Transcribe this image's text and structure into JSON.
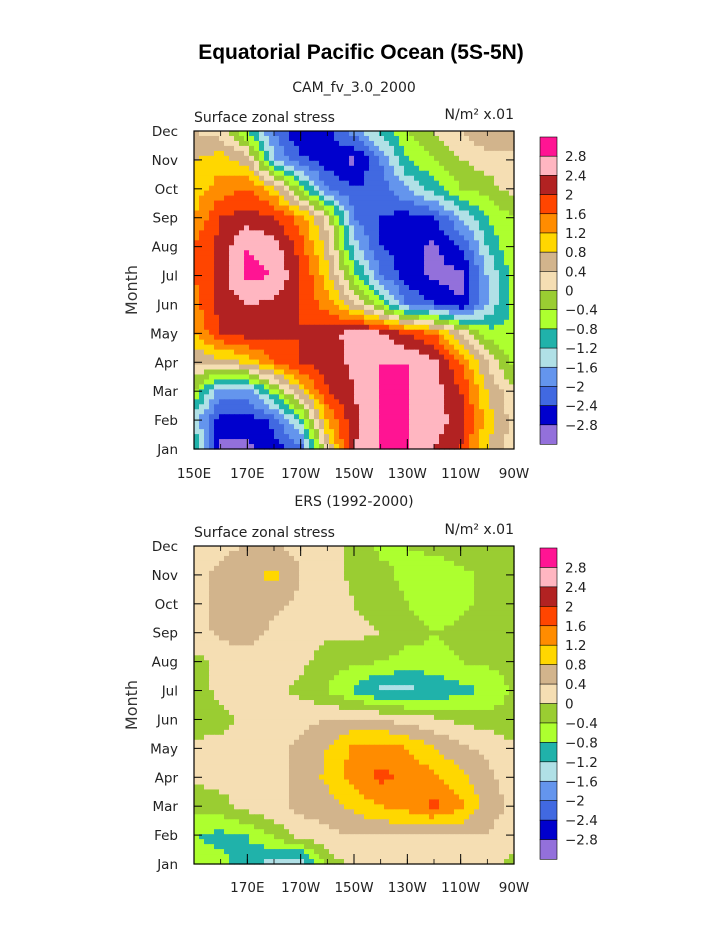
{
  "title": "Equatorial Pacific Ocean (5S-5N)",
  "chart_data": [
    {
      "type": "heatmap",
      "subtitle": "CAM_fv_3.0_2000",
      "left_label": "Surface zonal stress",
      "right_label": "N/m² x.01",
      "ylabel": "Month",
      "xticks": [
        "150E",
        "170E",
        "170W",
        "150W",
        "130W",
        "110W",
        "90W"
      ],
      "x": [
        150,
        160,
        170,
        180,
        190,
        200,
        210,
        220,
        230,
        240,
        250,
        260,
        270
      ],
      "months": [
        "Jan",
        "Feb",
        "Mar",
        "Apr",
        "May",
        "Jun",
        "Jul",
        "Aug",
        "Sep",
        "Oct",
        "Nov",
        "Dec"
      ],
      "values": [
        [
          -0.6,
          -2.9,
          -2.9,
          -2.6,
          -2.2,
          0.4,
          2.4,
          2.8,
          2.8,
          2.4,
          2.0,
          0.8,
          0.2
        ],
        [
          -1.4,
          -2.6,
          -2.6,
          -2.3,
          -1.0,
          1.2,
          2.3,
          2.8,
          2.8,
          2.6,
          2.2,
          1.0,
          0.2
        ],
        [
          -0.4,
          -1.8,
          -1.8,
          -0.6,
          0.8,
          2.0,
          2.4,
          2.8,
          2.8,
          2.6,
          2.0,
          0.8,
          0.1
        ],
        [
          0.4,
          0.6,
          0.9,
          1.6,
          2.0,
          2.2,
          2.5,
          2.8,
          2.8,
          2.5,
          1.6,
          0.4,
          -0.6
        ],
        [
          1.2,
          2.0,
          2.2,
          2.1,
          2.0,
          2.2,
          2.6,
          2.5,
          2.0,
          1.6,
          0.4,
          -0.6,
          -0.8
        ],
        [
          1.4,
          2.2,
          2.4,
          2.3,
          2.0,
          1.4,
          0.5,
          -0.6,
          -2.0,
          -2.4,
          -2.8,
          -1.6,
          -0.6
        ],
        [
          1.6,
          2.2,
          2.9,
          2.8,
          2.0,
          1.0,
          -0.6,
          -2.0,
          -2.6,
          -2.9,
          -2.9,
          -1.6,
          -0.6
        ],
        [
          1.6,
          2.2,
          2.8,
          2.6,
          1.8,
          0.6,
          -1.4,
          -2.4,
          -2.6,
          -2.9,
          -2.4,
          -1.2,
          -0.4
        ],
        [
          1.2,
          2.0,
          2.2,
          2.0,
          1.4,
          0.2,
          -2.0,
          -2.4,
          -2.6,
          -2.4,
          -1.6,
          -0.8,
          -0.4
        ],
        [
          1.0,
          1.4,
          1.6,
          1.0,
          -0.6,
          -2.0,
          -2.4,
          -2.2,
          -1.6,
          -1.0,
          -0.4,
          -0.2,
          0.2
        ],
        [
          0.8,
          1.0,
          0.6,
          -1.6,
          -2.3,
          -2.6,
          -2.9,
          -2.0,
          -0.8,
          -0.4,
          0.0,
          0.2,
          0.4
        ],
        [
          0.4,
          0.2,
          -0.8,
          -2.0,
          -2.8,
          -2.5,
          -1.8,
          -1.0,
          -0.4,
          0.0,
          0.4,
          0.8,
          0.4
        ]
      ]
    },
    {
      "type": "heatmap",
      "subtitle": "ERS (1992-2000)",
      "left_label": "Surface zonal stress",
      "right_label": "N/m² x.01",
      "ylabel": "Month",
      "xticks": [
        "170E",
        "170W",
        "150W",
        "130W",
        "110W",
        "90W"
      ],
      "x": [
        150,
        160,
        170,
        180,
        190,
        200,
        210,
        220,
        230,
        240,
        250,
        260,
        270
      ],
      "months": [
        "Jan",
        "Feb",
        "Mar",
        "Apr",
        "May",
        "Jun",
        "Jul",
        "Aug",
        "Sep",
        "Oct",
        "Nov",
        "Dec"
      ],
      "values": [
        [
          -0.6,
          -0.7,
          -1.0,
          -1.4,
          -1.6,
          -0.2,
          0.1,
          0.2,
          0.2,
          0.2,
          0.2,
          0.1,
          -0.1
        ],
        [
          -0.8,
          -0.9,
          -0.8,
          -0.3,
          0.2,
          0.3,
          0.4,
          0.4,
          0.4,
          0.4,
          0.4,
          0.4,
          0.1
        ],
        [
          -0.3,
          -0.2,
          0.2,
          0.3,
          0.5,
          0.6,
          0.9,
          1.2,
          1.4,
          1.7,
          1.3,
          0.6,
          0.3
        ],
        [
          0.1,
          0.2,
          0.3,
          0.3,
          0.5,
          0.9,
          1.4,
          1.7,
          1.5,
          1.3,
          0.9,
          0.5,
          0.2
        ],
        [
          0.1,
          0.1,
          0.2,
          0.3,
          0.5,
          0.8,
          1.3,
          1.4,
          1.2,
          0.8,
          0.5,
          0.3,
          0.1
        ],
        [
          -0.2,
          -0.1,
          0.1,
          0.2,
          0.3,
          0.4,
          0.5,
          0.4,
          0.2,
          0.1,
          -0.1,
          -0.2,
          -0.3
        ],
        [
          -0.2,
          0.1,
          0.2,
          0.1,
          -0.1,
          -0.4,
          -0.9,
          -1.3,
          -1.3,
          -1.2,
          -0.9,
          -0.8,
          -0.3
        ],
        [
          -0.1,
          0.1,
          0.2,
          0.2,
          0.1,
          -0.2,
          -0.3,
          -0.4,
          -0.6,
          -0.5,
          -0.4,
          -0.3,
          -0.2
        ],
        [
          0.2,
          0.5,
          0.6,
          0.3,
          0.2,
          0.1,
          0.1,
          0.0,
          -0.2,
          -0.4,
          -0.3,
          -0.2,
          -0.1
        ],
        [
          0.3,
          0.5,
          0.5,
          0.5,
          0.3,
          0.2,
          0.0,
          -0.2,
          -0.4,
          -0.6,
          -0.5,
          -0.3,
          -0.2
        ],
        [
          0.3,
          0.5,
          0.7,
          0.9,
          0.4,
          0.2,
          -0.1,
          -0.3,
          -0.5,
          -0.6,
          -0.5,
          -0.3,
          -0.2
        ],
        [
          0.2,
          0.3,
          0.4,
          0.4,
          0.3,
          0.2,
          -0.1,
          -0.5,
          -0.4,
          -0.3,
          -0.2,
          -0.1,
          -0.1
        ]
      ]
    }
  ],
  "colorbar": {
    "levels": [
      2.8,
      2.4,
      2,
      1.6,
      1.2,
      0.8,
      0.4,
      0,
      -0.4,
      -0.8,
      -1.2,
      -1.6,
      -2,
      -2.4,
      -2.8
    ],
    "labels": [
      "2.8",
      "2.4",
      "2",
      "1.6",
      "1.2",
      "0.8",
      "0.4",
      "0",
      "−0.4",
      "−0.8",
      "−1.2",
      "−1.6",
      "−2",
      "−2.4",
      "−2.8"
    ],
    "colors": [
      "#ff1493",
      "#ffb6c1",
      "#b22222",
      "#ff4500",
      "#ff8c00",
      "#ffd700",
      "#d2b48c",
      "#f5deb3",
      "#9acd32",
      "#adff2f",
      "#20b2aa",
      "#b0e0e6",
      "#6495ed",
      "#4169e1",
      "#0000cd",
      "#9370db"
    ]
  }
}
